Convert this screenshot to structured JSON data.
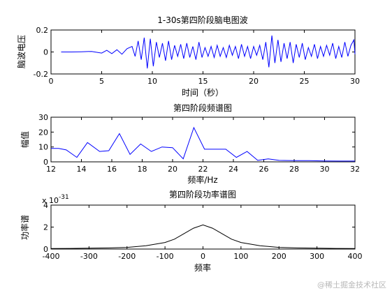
{
  "watermark": "@稀土掘金技术社区",
  "colors": {
    "series1": "#0000ff",
    "series2": "#0000ff",
    "series3": "#000000",
    "axes": "#000000"
  },
  "chart_data": [
    {
      "type": "line",
      "title": "1-30s第四阶段脑电图波",
      "xlabel": "时间（秒）",
      "ylabel": "脑波电压",
      "xlim": [
        0,
        30
      ],
      "ylim": [
        -0.2,
        0.2
      ],
      "xticks": [
        0,
        5,
        10,
        15,
        20,
        25,
        30
      ],
      "yticks": [
        -0.2,
        0,
        0.2
      ],
      "grid": false,
      "series": [
        {
          "x": [
            1,
            2,
            3,
            4,
            5,
            5.5,
            6,
            6.5,
            7,
            7.5,
            8,
            8.3,
            8.6,
            8.9,
            9.2,
            9.5,
            9.8,
            10.1,
            10.4,
            10.7,
            11.0,
            11.3,
            11.6,
            11.9,
            12.2,
            12.5,
            12.8,
            13.1,
            13.4,
            13.7,
            14.0,
            14.3,
            14.6,
            14.9,
            15.2,
            15.5,
            15.8,
            16.1,
            16.4,
            16.7,
            17.0,
            17.3,
            17.6,
            17.9,
            18.2,
            18.5,
            18.8,
            19.1,
            19.4,
            19.7,
            20.0,
            20.3,
            20.6,
            20.9,
            21.2,
            21.5,
            21.8,
            22.1,
            22.4,
            22.7,
            23.0,
            23.3,
            23.6,
            23.9,
            24.2,
            24.5,
            24.8,
            25.1,
            25.4,
            25.7,
            26.0,
            26.3,
            26.6,
            26.9,
            27.2,
            27.5,
            27.8,
            28.1,
            28.4,
            28.7,
            29.0,
            29.3,
            29.6,
            29.9,
            30
          ],
          "values": [
            0,
            0,
            0.002,
            0.005,
            -0.01,
            0.015,
            -0.015,
            0.02,
            -0.02,
            0.03,
            0.05,
            -0.04,
            0.1,
            -0.07,
            0.13,
            -0.15,
            0.12,
            -0.13,
            0.09,
            -0.05,
            0.08,
            -0.08,
            0.1,
            -0.07,
            0.06,
            -0.04,
            0.07,
            -0.06,
            0.08,
            -0.05,
            0.05,
            -0.07,
            0.09,
            -0.05,
            0.04,
            -0.04,
            0.05,
            -0.05,
            0.06,
            -0.04,
            0.04,
            -0.05,
            0.06,
            -0.03,
            0.05,
            -0.06,
            0.07,
            -0.04,
            0.05,
            -0.06,
            0.05,
            -0.03,
            0.06,
            -0.07,
            0.09,
            -0.14,
            0.15,
            -0.1,
            0.11,
            -0.09,
            0.08,
            -0.06,
            0.09,
            -0.1,
            0.07,
            -0.05,
            0.08,
            -0.07,
            0.04,
            -0.04,
            0.07,
            -0.06,
            0.05,
            -0.04,
            0.06,
            -0.03,
            0.08,
            -0.06,
            0.05,
            -0.05,
            0.09,
            -0.04,
            0.06,
            0.11,
            -0.02
          ]
        }
      ]
    },
    {
      "type": "line",
      "title": "第四阶段频谱图",
      "xlabel": "频率/Hz",
      "ylabel": "幅值",
      "xlim": [
        12,
        32
      ],
      "ylim": [
        0,
        30
      ],
      "xticks": [
        12,
        14,
        16,
        18,
        20,
        22,
        24,
        26,
        28,
        30,
        32
      ],
      "yticks": [
        0,
        10,
        20,
        30
      ],
      "grid": false,
      "series": [
        {
          "x": [
            12,
            12.5,
            13,
            13.7,
            14.4,
            15.2,
            15.8,
            16.5,
            17.2,
            17.9,
            18.6,
            19.3,
            20,
            20.7,
            21.4,
            22.1,
            22.8,
            23.5,
            24.2,
            24.9,
            25.6,
            26.3,
            27,
            28,
            29,
            30,
            31,
            32
          ],
          "values": [
            9,
            9,
            8,
            3,
            13,
            7,
            7.5,
            19,
            5,
            12,
            7,
            10,
            9.5,
            2,
            23,
            8.5,
            8.5,
            8.5,
            3,
            7,
            1,
            2,
            1,
            0.8,
            0.8,
            0.6,
            0.5,
            0.5
          ]
        }
      ]
    },
    {
      "type": "line",
      "title": "第四阶段功率谱图",
      "xlabel": "频率",
      "ylabel": "功率谱",
      "exponent_label": "x 10",
      "exponent": "-31",
      "xlim": [
        -400,
        400
      ],
      "ylim": [
        0,
        4
      ],
      "xticks": [
        -400,
        -300,
        -200,
        -100,
        0,
        100,
        200,
        300,
        400
      ],
      "yticks": [
        0,
        2,
        4
      ],
      "grid": false,
      "series": [
        {
          "x": [
            -400,
            -350,
            -300,
            -250,
            -200,
            -150,
            -100,
            -75,
            -50,
            -25,
            0,
            25,
            50,
            75,
            100,
            150,
            200,
            250,
            300,
            350,
            400
          ],
          "values": [
            0.05,
            0.06,
            0.08,
            0.1,
            0.15,
            0.3,
            0.6,
            0.9,
            1.4,
            1.9,
            2.2,
            1.9,
            1.4,
            0.9,
            0.6,
            0.3,
            0.15,
            0.1,
            0.08,
            0.06,
            0.05
          ]
        }
      ]
    }
  ]
}
